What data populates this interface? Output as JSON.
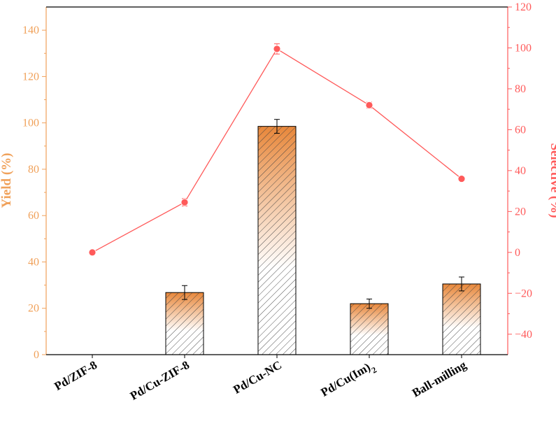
{
  "chart_data": {
    "type": "bar",
    "categories": [
      "Pd/ZIF-8",
      "Pd/Cu-ZIF-8",
      "Pd/Cu-NC",
      "Pd/Cu(Im)2",
      "Ball-milling"
    ],
    "category_labels": [
      {
        "text": "Pd/ZIF-8"
      },
      {
        "text": "Pd/Cu-ZIF-8"
      },
      {
        "text": "Pd/Cu-NC"
      },
      {
        "text": "Pd/Cu(Im)",
        "sub": "2"
      },
      {
        "text": "Ball-milling"
      }
    ],
    "series": [
      {
        "type": "bar",
        "axis": "left",
        "values": [
          0,
          26.8,
          98.5,
          22.0,
          30.5
        ],
        "errors": [
          0,
          3.0,
          3.0,
          2.0,
          3.0
        ]
      },
      {
        "type": "line",
        "axis": "right",
        "values": [
          0,
          24.5,
          99.5,
          72.0,
          36.0
        ],
        "errors": [
          0,
          1.8,
          2.5,
          1.5,
          0.8
        ]
      }
    ],
    "ylabel": "Yield (%)",
    "y2label": "Selective (%)",
    "ylim": [
      0,
      150
    ],
    "y2lim": [
      -50,
      120
    ],
    "yticks": [
      0,
      20,
      40,
      60,
      80,
      100,
      120,
      140
    ],
    "y2ticks": [
      -40,
      -20,
      0,
      20,
      40,
      60,
      80,
      100,
      120
    ],
    "grid": false,
    "colors": {
      "left_axis": "#F0A15A",
      "right_axis": "#FF5A5A",
      "bar_top": "#E8873A",
      "bar_bottom": "#FFFFFF",
      "hatch": "#404040",
      "line": "#FF5A5A"
    }
  }
}
